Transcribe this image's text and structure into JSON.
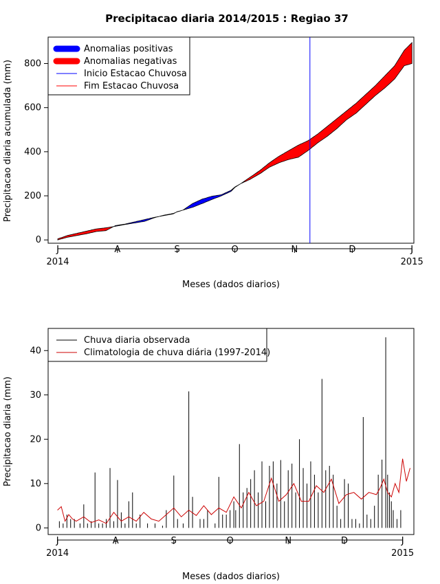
{
  "page_title": "Precipitacao diaria 2014/2015 : Regiao 37",
  "chart_data": [
    {
      "type": "area",
      "title": "Precipitacao diaria 2014/2015 : Regiao 37",
      "xlabel": "Meses (dados diarios)",
      "ylabel": "Precipitacao diaria acumulada (mm)",
      "xlim": [
        -5,
        185
      ],
      "ylim": [
        -15,
        920
      ],
      "yticks": [
        0,
        200,
        400,
        600,
        800
      ],
      "month_ticks": [
        {
          "day": 0,
          "label": "J"
        },
        {
          "day": 31,
          "label": "A"
        },
        {
          "day": 62,
          "label": "S"
        },
        {
          "day": 92,
          "label": "O"
        },
        {
          "day": 123,
          "label": "N"
        },
        {
          "day": 153,
          "label": "D"
        },
        {
          "day": 184,
          "label": "J"
        }
      ],
      "year_labels": [
        {
          "day": 0,
          "label": "2014"
        },
        {
          "day": 184,
          "label": "2015"
        }
      ],
      "legend": {
        "position": "top-left",
        "items": [
          {
            "label": "Anomalias positivas",
            "color": "#0000ff",
            "style": "thick"
          },
          {
            "label": "Anomalias negativas",
            "color": "#ff0000",
            "style": "thick"
          },
          {
            "label": "Inicio Estacao Chuvosa",
            "color": "#0000ff",
            "style": "line"
          },
          {
            "label": "Fim Estacao Chuvosa",
            "color": "#ff0000",
            "style": "line"
          }
        ]
      },
      "rainy_season_start_day": 131,
      "observed": {
        "days": [
          0,
          5,
          10,
          15,
          20,
          25,
          30,
          35,
          40,
          45,
          50,
          55,
          60,
          62,
          65,
          70,
          75,
          80,
          85,
          90,
          92,
          95,
          100,
          105,
          110,
          115,
          120,
          125,
          130,
          135,
          140,
          145,
          150,
          155,
          160,
          165,
          170,
          175,
          180,
          184
        ],
        "values": [
          0,
          12,
          20,
          28,
          38,
          42,
          65,
          72,
          82,
          92,
          102,
          110,
          118,
          128,
          135,
          165,
          185,
          198,
          205,
          225,
          240,
          255,
          275,
          300,
          330,
          350,
          365,
          375,
          405,
          440,
          470,
          505,
          545,
          575,
          615,
          655,
          690,
          730,
          790,
          800
        ]
      },
      "climatology": {
        "days": [
          0,
          5,
          10,
          15,
          20,
          25,
          30,
          35,
          40,
          45,
          50,
          55,
          60,
          62,
          65,
          70,
          75,
          80,
          85,
          90,
          92,
          95,
          100,
          105,
          110,
          115,
          120,
          125,
          130,
          135,
          140,
          145,
          150,
          155,
          160,
          165,
          170,
          175,
          180,
          184
        ],
        "values": [
          5,
          20,
          30,
          40,
          50,
          55,
          62,
          70,
          77,
          84,
          100,
          112,
          120,
          127,
          135,
          148,
          165,
          183,
          200,
          220,
          238,
          255,
          285,
          315,
          350,
          380,
          405,
          430,
          450,
          480,
          515,
          550,
          585,
          620,
          660,
          700,
          745,
          790,
          860,
          895
        ]
      }
    },
    {
      "type": "bar",
      "xlabel": "Meses (dados diarios)",
      "ylabel": "Precipitacao diaria (mm)",
      "xlim": [
        -5,
        190
      ],
      "ylim": [
        -1.5,
        45
      ],
      "yticks": [
        0,
        10,
        20,
        30,
        40
      ],
      "month_ticks": [
        {
          "day": 0,
          "label": "J"
        },
        {
          "day": 31,
          "label": "A"
        },
        {
          "day": 62,
          "label": "S"
        },
        {
          "day": 92,
          "label": "O"
        },
        {
          "day": 123,
          "label": "N"
        },
        {
          "day": 153,
          "label": "D"
        },
        {
          "day": 184,
          "label": "J"
        }
      ],
      "year_labels": [
        {
          "day": 0,
          "label": "2014"
        },
        {
          "day": 184,
          "label": "2015"
        }
      ],
      "legend": {
        "position": "top-left",
        "items": [
          {
            "label": "Chuva diaria observada",
            "color": "#000000"
          },
          {
            "label": "Climatologia de chuva diária (1997-2014)",
            "color": "#cc0000"
          }
        ]
      },
      "observed_bars": {
        "days": [
          1,
          3,
          5,
          7,
          9,
          12,
          14,
          16,
          18,
          20,
          22,
          24,
          26,
          28,
          30,
          32,
          34,
          36,
          38,
          40,
          42,
          44,
          48,
          52,
          56,
          58,
          62,
          64,
          67,
          70,
          72,
          76,
          78,
          80,
          84,
          86,
          88,
          90,
          92,
          94,
          95,
          97,
          99,
          101,
          103,
          105,
          107,
          109,
          111,
          113,
          115,
          117,
          119,
          121,
          123,
          125,
          127,
          129,
          131,
          133,
          135,
          137,
          139,
          141,
          143,
          145,
          147,
          149,
          151,
          153,
          155,
          157,
          159,
          161,
          163,
          165,
          167,
          169,
          171,
          173,
          175,
          176,
          177,
          178,
          179,
          181,
          183
        ],
        "values": [
          1.5,
          1,
          3,
          2,
          2,
          1,
          5.3,
          1,
          1.5,
          12.5,
          1,
          1,
          2,
          13.5,
          1.5,
          10.8,
          3.5,
          1,
          6,
          8,
          1,
          3,
          1,
          1,
          0.5,
          4,
          11.8,
          2,
          1,
          30.8,
          7,
          2,
          2,
          4,
          1,
          11.5,
          3,
          3,
          4,
          6,
          4,
          18.9,
          8,
          9,
          11,
          13,
          8,
          15,
          6,
          14,
          15,
          10,
          15.3,
          6,
          13,
          14.5,
          8,
          20,
          13.5,
          10,
          15,
          12,
          8,
          33.6,
          13,
          14,
          12,
          5,
          2,
          11,
          10,
          2,
          2,
          1,
          25,
          3,
          2,
          5,
          12,
          15.4,
          43,
          12,
          8,
          6,
          4,
          2,
          4
        ]
      },
      "climatology_line": {
        "days": [
          0,
          2,
          4,
          6,
          8,
          10,
          14,
          18,
          22,
          26,
          30,
          34,
          38,
          42,
          46,
          50,
          54,
          58,
          62,
          66,
          70,
          74,
          78,
          82,
          86,
          90,
          94,
          98,
          102,
          106,
          110,
          114,
          118,
          122,
          126,
          130,
          134,
          138,
          142,
          146,
          150,
          154,
          158,
          162,
          166,
          170,
          172,
          174,
          176,
          178,
          180,
          182,
          184,
          186,
          188
        ],
        "values": [
          4,
          4.8,
          1.5,
          3,
          2,
          1.5,
          2.5,
          1.2,
          1.8,
          1,
          3.5,
          1.5,
          2.5,
          1.5,
          3.5,
          2,
          1.5,
          3,
          4.5,
          2.5,
          4,
          2.8,
          5,
          3,
          4.5,
          3.5,
          7,
          4.5,
          8,
          5,
          6,
          11.2,
          6,
          7.5,
          10,
          6,
          6,
          9.5,
          8,
          11,
          5.5,
          7.5,
          8,
          6.5,
          8,
          7.5,
          9,
          11,
          8,
          7,
          10,
          8,
          15.6,
          10.5,
          13.5
        ]
      }
    }
  ]
}
